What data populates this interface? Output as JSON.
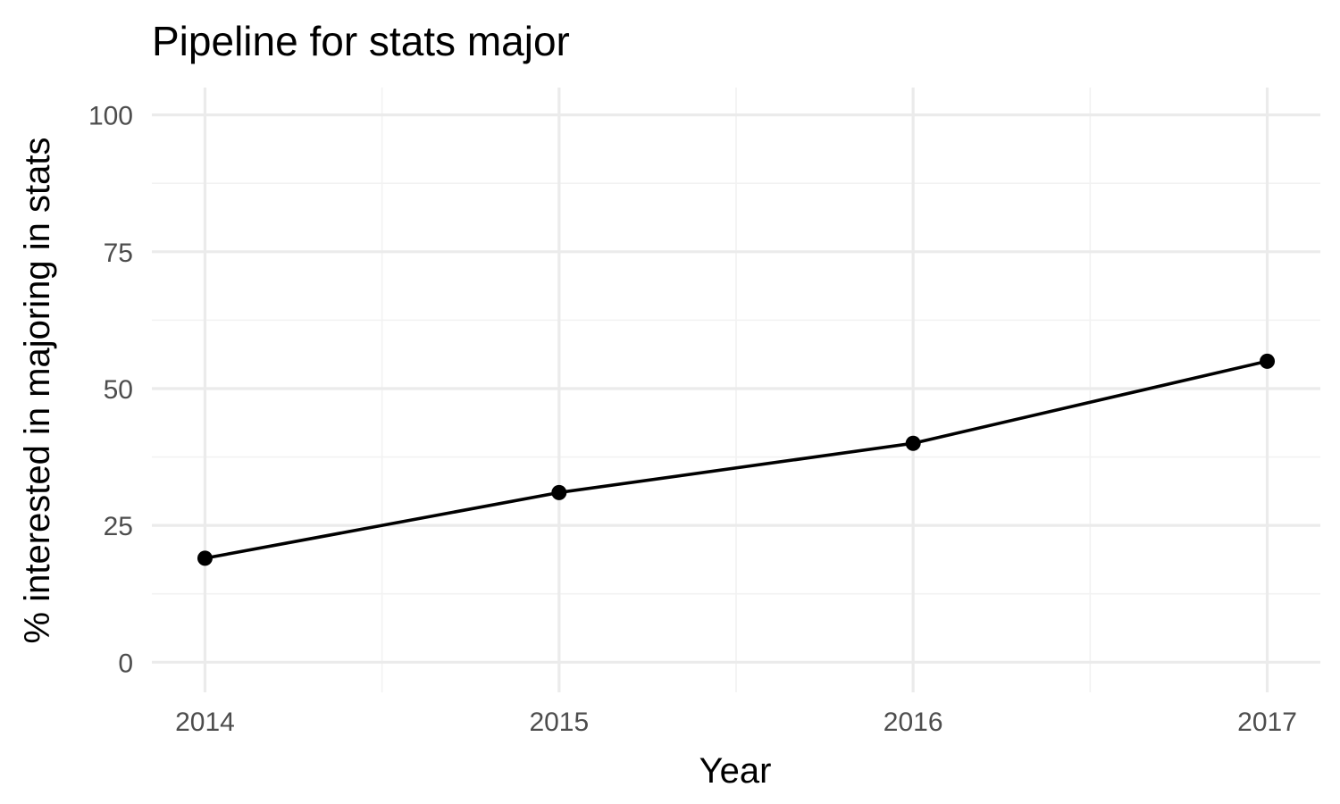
{
  "chart_data": {
    "type": "line",
    "title": "Pipeline for stats major",
    "xlabel": "Year",
    "ylabel": "% interested in majoring in stats",
    "x": [
      2014,
      2015,
      2016,
      2017
    ],
    "x_tick_labels": [
      "2014",
      "2015",
      "2016",
      "2017"
    ],
    "y_ticks": [
      0,
      25,
      50,
      75,
      100
    ],
    "y_tick_labels": [
      "0",
      "25",
      "50",
      "75",
      "100"
    ],
    "xlim": [
      2013.85,
      2017.15
    ],
    "ylim": [
      -5.5,
      105
    ],
    "series": [
      {
        "values": [
          19,
          31,
          40,
          55
        ]
      }
    ],
    "grid": true,
    "legend": "none",
    "colors": {
      "line": "#000000",
      "point": "#000000",
      "grid_major": "#ebebeb",
      "grid_minor": "#f2f2f2",
      "background": "#ffffff"
    }
  }
}
